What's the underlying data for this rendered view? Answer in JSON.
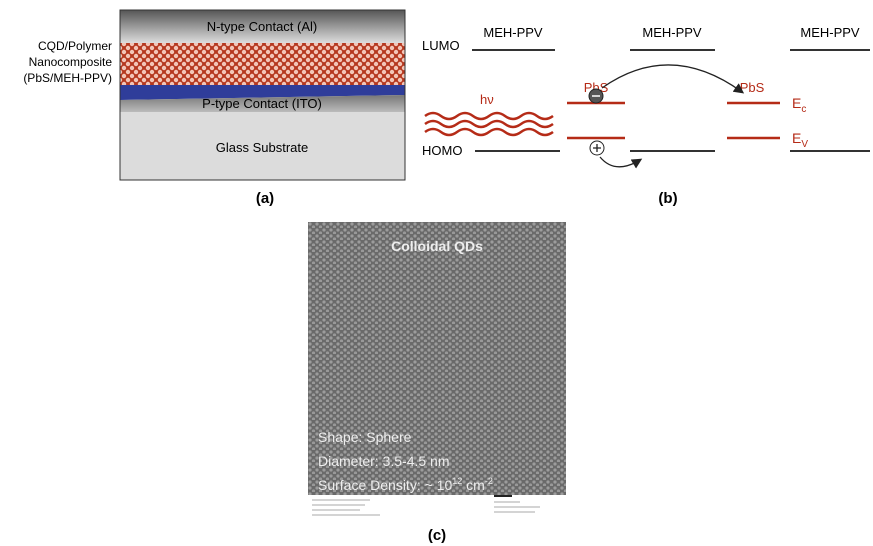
{
  "panel_a": {
    "layers": [
      "N-type Contact (Al)",
      "P-type Contact (ITO)",
      "Glass Substrate"
    ],
    "side_label": [
      "CQD/Polymer",
      "Nanocomposite",
      "(PbS/MEH-PPV)"
    ],
    "caption": "(a)"
  },
  "panel_b": {
    "lumo": "LUMO",
    "homo": "HOMO",
    "polymer": [
      "MEH-PPV",
      "MEH-PPV",
      "MEH-PPV"
    ],
    "dot": [
      "PbS",
      "PbS"
    ],
    "photon": "hν",
    "ec": [
      "E",
      "c"
    ],
    "ev": [
      "E",
      "V"
    ],
    "caption": "(b)"
  },
  "panel_c": {
    "title": "Colloidal QDs",
    "shape": "Shape: Sphere",
    "diameter": "Diameter: 3.5-4.5 nm",
    "density": [
      "Surface Density: ~ 10",
      "12",
      " cm",
      "-2"
    ],
    "caption": "(c)"
  }
}
